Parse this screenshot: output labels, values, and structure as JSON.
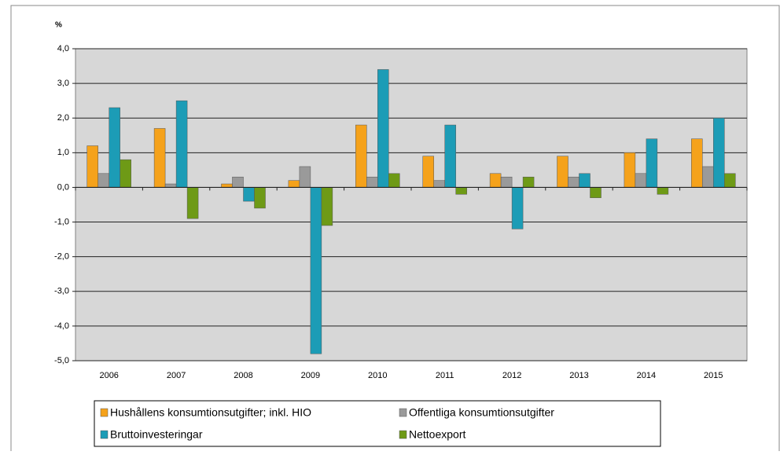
{
  "chart_data": {
    "type": "bar",
    "y_label": "%",
    "categories": [
      "2006",
      "2007",
      "2008",
      "2009",
      "2010",
      "2011",
      "2012",
      "2013",
      "2014",
      "2015"
    ],
    "series": [
      {
        "name": "Hushållens konsumtionsutgifter; inkl. HIO",
        "color": "#f5a21b",
        "values": [
          1.2,
          1.7,
          0.1,
          0.2,
          1.8,
          0.9,
          0.4,
          0.9,
          1.0,
          1.4
        ]
      },
      {
        "name": "Offentliga konsumtionsutgifter",
        "color": "#9a9a9a",
        "values": [
          0.4,
          0.1,
          0.3,
          0.6,
          0.3,
          0.2,
          0.3,
          0.3,
          0.4,
          0.6
        ]
      },
      {
        "name": "Bruttoinvesteringar",
        "color": "#1c9cb6",
        "values": [
          2.3,
          2.5,
          -0.4,
          -4.8,
          3.4,
          1.8,
          -1.2,
          0.4,
          1.4,
          2.0
        ]
      },
      {
        "name": "Nettoexport",
        "color": "#6e9a16",
        "values": [
          0.8,
          -0.9,
          -0.6,
          -1.1,
          0.4,
          -0.2,
          0.3,
          -0.3,
          -0.2,
          0.4
        ]
      }
    ],
    "ylim": [
      -5,
      4
    ],
    "yticks": [
      {
        "value": -5,
        "label": "-5,0"
      },
      {
        "value": -4,
        "label": "-4,0"
      },
      {
        "value": -3,
        "label": "-3,0"
      },
      {
        "value": -2,
        "label": "-2,0"
      },
      {
        "value": -1,
        "label": "-1,0"
      },
      {
        "value": 0,
        "label": "0,0"
      },
      {
        "value": 1,
        "label": "1,0"
      },
      {
        "value": 2,
        "label": "2,0"
      },
      {
        "value": 3,
        "label": "3,0"
      },
      {
        "value": 4,
        "label": "4,0"
      }
    ],
    "grid": true
  }
}
